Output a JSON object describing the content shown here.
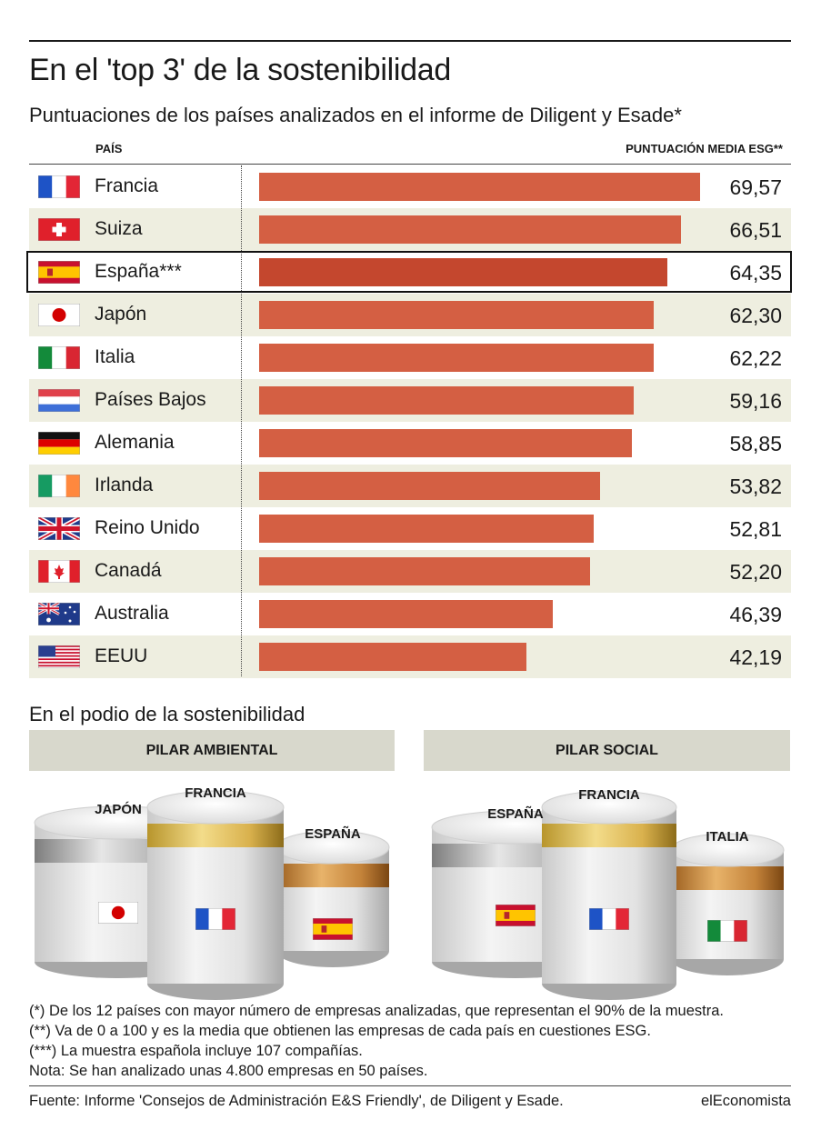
{
  "title": "En el 'top 3' de la sostenibilidad",
  "subtitle": "Puntuaciones de los países analizados en el informe de Diligent y Esade*",
  "chart_data": {
    "type": "bar",
    "orientation": "horizontal",
    "title": "En el 'top 3' de la sostenibilidad",
    "subtitle": "Puntuaciones de los países analizados en el informe de Diligent y Esade*",
    "category_header": "PAÍS",
    "value_header": "PUNTUACIÓN MEDIA ESG**",
    "xlim": [
      0,
      70
    ],
    "grid": false,
    "highlighted": "España***",
    "categories": [
      "Francia",
      "Suiza",
      "España***",
      "Japón",
      "Italia",
      "Países Bajos",
      "Alemania",
      "Irlanda",
      "Reino Unido",
      "Canadá",
      "Australia",
      "EEUU"
    ],
    "values": [
      69.57,
      66.51,
      64.35,
      62.3,
      62.22,
      59.16,
      58.85,
      53.82,
      52.81,
      52.2,
      46.39,
      42.19
    ],
    "value_labels": [
      "69,57",
      "66,51",
      "64,35",
      "62,30",
      "62,22",
      "59,16",
      "58,85",
      "53,82",
      "52,81",
      "52,20",
      "46,39",
      "42,19"
    ],
    "flags": [
      "france-flag-icon",
      "switzerland-flag-icon",
      "spain-flag-icon",
      "japan-flag-icon",
      "italy-flag-icon",
      "netherlands-flag-icon",
      "germany-flag-icon",
      "ireland-flag-icon",
      "uk-flag-icon",
      "canada-flag-icon",
      "australia-flag-icon",
      "usa-flag-icon"
    ],
    "colors": {
      "bar": "#d45f43",
      "highlight_bar": "#c4472e",
      "alt_row": "#eeeee0"
    }
  },
  "podium": {
    "heading": "En el podio de la sostenibilidad",
    "pillars": [
      {
        "label": "PILAR AMBIENTAL",
        "first": {
          "country": "FRANCIA",
          "flag": "france-flag-icon"
        },
        "second": {
          "country": "JAPÓN",
          "flag": "japan-flag-icon"
        },
        "third": {
          "country": "ESPAÑA",
          "flag": "spain-flag-icon"
        }
      },
      {
        "label": "PILAR SOCIAL",
        "first": {
          "country": "FRANCIA",
          "flag": "france-flag-icon"
        },
        "second": {
          "country": "ESPAÑA",
          "flag": "spain-flag-icon"
        },
        "third": {
          "country": "ITALIA",
          "flag": "italy-flag-icon"
        }
      }
    ]
  },
  "notes": [
    "(*) De los 12 países con mayor número de empresas analizadas, que representan el 90% de la muestra.",
    "(**) Va de 0 a 100 y es la media que obtienen las empresas de cada país en cuestiones ESG.",
    "(***) La muestra española incluye 107 compañías.",
    "Nota: Se han analizado unas 4.800 empresas en 50 países."
  ],
  "source": "Fuente: Informe 'Consejos de Administración E&S Friendly', de Diligent y Esade.",
  "brand": "elEconomista"
}
